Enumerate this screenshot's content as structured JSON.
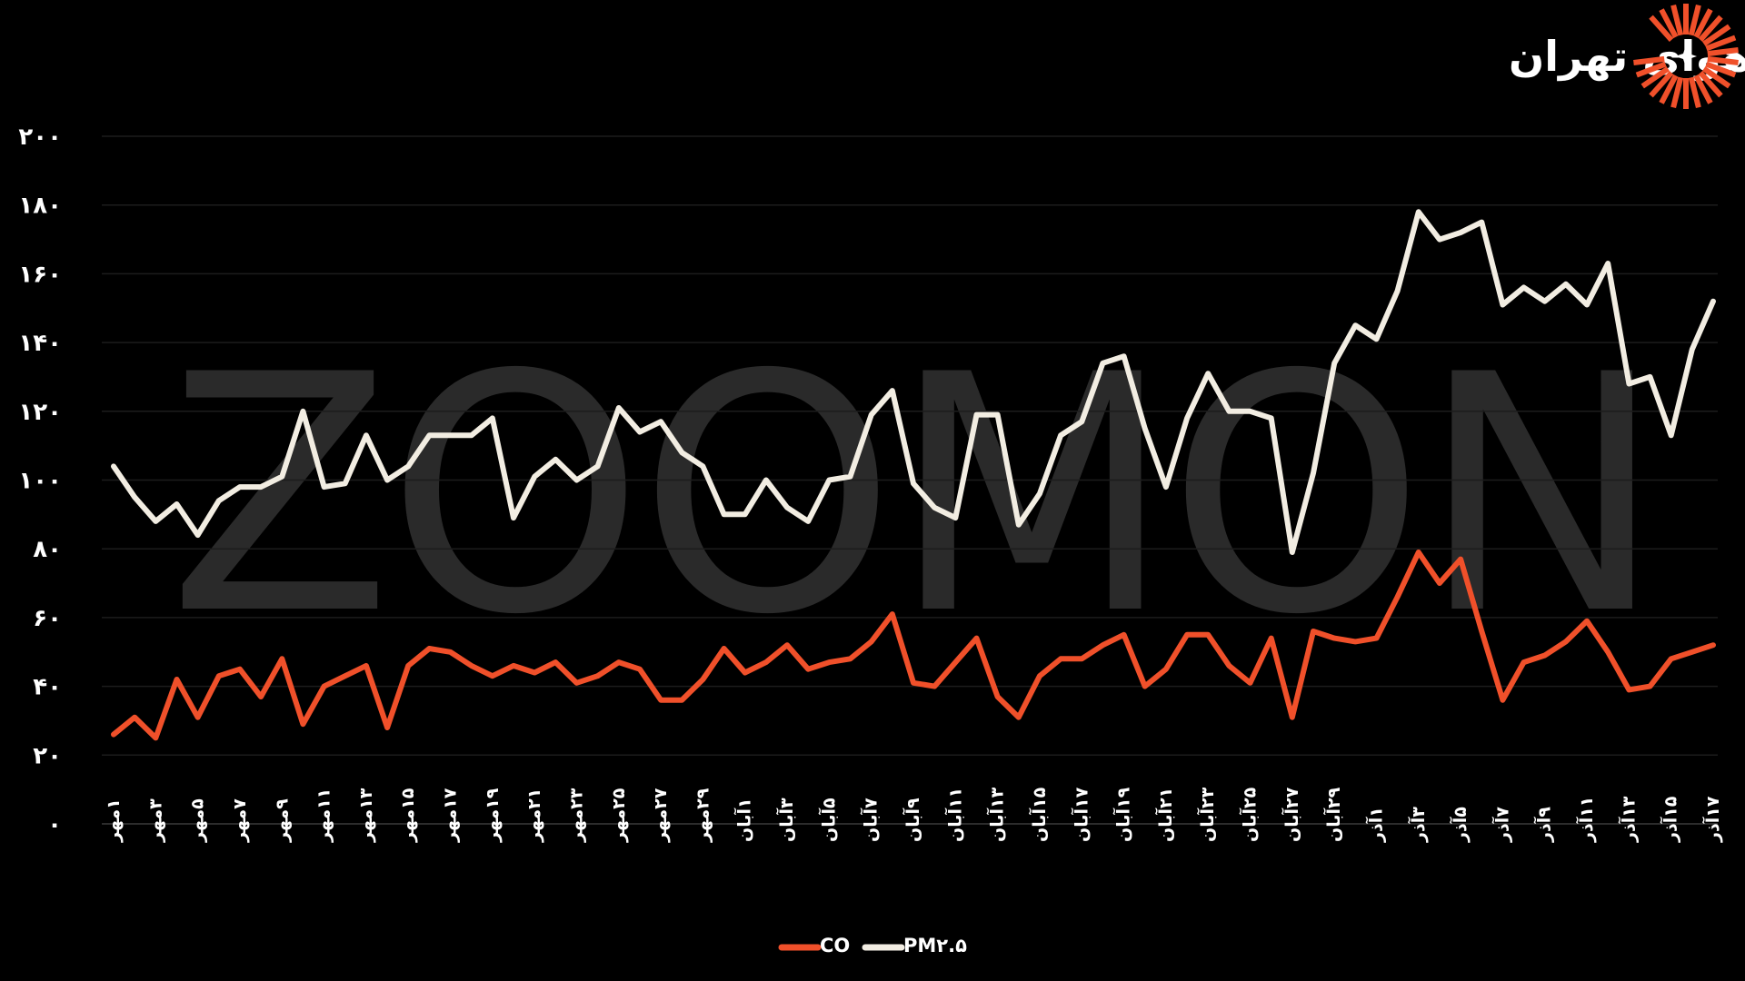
{
  "header": {
    "title": "مقایسه روند مهمترین شاخص های آلاینده های هوای تهران"
  },
  "watermark": "ZOOMON",
  "colors": {
    "background": "#000000",
    "co": "#f0502a",
    "pm25": "#f2ede2",
    "grid": "#1c1c1c",
    "watermark": "#2a2a2a"
  },
  "chart_data": {
    "type": "line",
    "title": "مقایسه روند مهمترین شاخص های آلاینده های هوای تهران",
    "ylim": [
      0,
      200
    ],
    "yticks": [
      "۰",
      "۲۰",
      "۴۰",
      "۶۰",
      "۸۰",
      "۱۰۰",
      "۱۲۰",
      "۱۴۰",
      "۱۶۰",
      "۱۸۰",
      "۲۰۰"
    ],
    "grid": true,
    "legend_position": "bottom-center",
    "x_labels": [
      "۱مهر",
      "۳مهر",
      "۵مهر",
      "۷مهر",
      "۹مهر",
      "۱۱مهر",
      "۱۳مهر",
      "۱۵مهر",
      "۱۷مهر",
      "۱۹مهر",
      "۲۱مهر",
      "۲۳مهر",
      "۲۵مهر",
      "۲۷مهر",
      "۲۹مهر",
      "۱آبان",
      "۳آبان",
      "۵آبان",
      "۷آبان",
      "۹آبان",
      "۱۱آبان",
      "۱۳آبان",
      "۱۵آبان",
      "۱۷آبان",
      "۱۹آبان",
      "۲۱آبان",
      "۲۳آبان",
      "۲۵آبان",
      "۲۷آبان",
      "۲۹آبان",
      "۱آذر",
      "۳آذر",
      "۵آذر",
      "۷آذر",
      "۹آذر",
      "۱۱آذر",
      "۱۳آذر",
      "۱۵آذر",
      "۱۷آذر"
    ],
    "series": [
      {
        "name": "CO",
        "color": "#f0502a",
        "values": [
          26,
          31,
          25,
          42,
          31,
          43,
          45,
          37,
          48,
          29,
          40,
          43,
          46,
          28,
          46,
          51,
          50,
          46,
          43,
          46,
          44,
          47,
          41,
          43,
          47,
          45,
          36,
          36,
          42,
          51,
          44,
          47,
          52,
          45,
          47,
          48,
          53,
          61,
          41,
          40,
          47,
          54,
          37,
          31,
          43,
          48,
          48,
          52,
          55,
          40,
          45,
          55,
          55,
          46,
          41,
          54,
          31,
          56,
          54,
          53,
          54,
          66,
          79,
          70,
          77,
          56,
          36,
          47,
          49,
          53,
          59,
          50,
          39,
          40,
          48,
          50,
          52
        ]
      },
      {
        "name": "PM۲.۵",
        "color": "#f2ede2",
        "values": [
          104,
          95,
          88,
          93,
          84,
          94,
          98,
          98,
          101,
          120,
          98,
          99,
          113,
          100,
          104,
          113,
          113,
          113,
          118,
          89,
          101,
          106,
          100,
          104,
          121,
          114,
          117,
          108,
          104,
          90,
          90,
          100,
          92,
          88,
          100,
          101,
          119,
          126,
          99,
          92,
          89,
          119,
          119,
          87,
          96,
          113,
          117,
          134,
          136,
          115,
          98,
          118,
          131,
          120,
          120,
          118,
          79,
          102,
          134,
          145,
          141,
          155,
          178,
          170,
          172,
          175,
          151,
          156,
          152,
          157,
          151,
          163,
          128,
          130,
          113,
          138,
          152
        ]
      }
    ]
  }
}
